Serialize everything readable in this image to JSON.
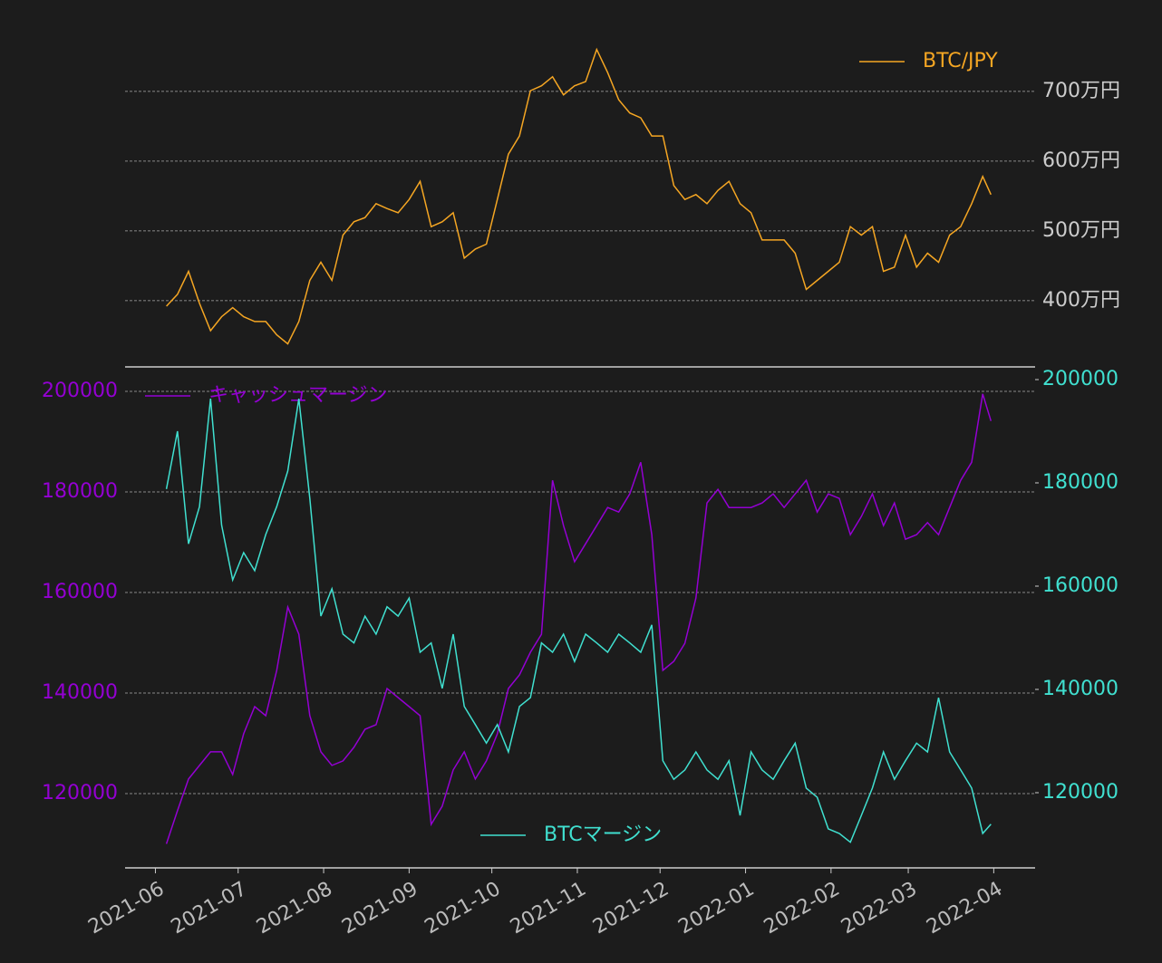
{
  "chart_data": [
    {
      "type": "line",
      "legend": "upper right",
      "grid": true,
      "ylabels_side": "right",
      "x": [
        4,
        8,
        12,
        16,
        20,
        24,
        28,
        32,
        36,
        40,
        44,
        48,
        52,
        56,
        60,
        64,
        68,
        72,
        76,
        80,
        84,
        88,
        92,
        96,
        100,
        104,
        108,
        112,
        116,
        120,
        124,
        128,
        132,
        136,
        140,
        144,
        148,
        152,
        156,
        160,
        164,
        168,
        172,
        176,
        180,
        184,
        188,
        192,
        196,
        200,
        204,
        208,
        212,
        216,
        220,
        224,
        228,
        232,
        236,
        240,
        244,
        248,
        252,
        256,
        260,
        264,
        268,
        272,
        276,
        280,
        284,
        288,
        292,
        296,
        300,
        303
      ],
      "xlim": [
        -11,
        319
      ],
      "ylim": [
        3050000,
        8050000
      ],
      "yticks": [
        {
          "value": 4000000,
          "label": "400万円"
        },
        {
          "value": 5000000,
          "label": "500万円"
        },
        {
          "value": 6000000,
          "label": "600万円"
        },
        {
          "value": 7000000,
          "label": "700万円"
        }
      ],
      "series": [
        {
          "name": "BTC/JPY",
          "color": "#f5a623",
          "axis": "y",
          "values": [
            3920000,
            4090000,
            4420000,
            3960000,
            3570000,
            3770000,
            3900000,
            3770000,
            3700000,
            3700000,
            3510000,
            3380000,
            3700000,
            4290000,
            4550000,
            4290000,
            4940000,
            5130000,
            5190000,
            5390000,
            5320000,
            5260000,
            5450000,
            5710000,
            5060000,
            5130000,
            5260000,
            4610000,
            4740000,
            4810000,
            5450000,
            6100000,
            6360000,
            7010000,
            7080000,
            7210000,
            6950000,
            7080000,
            7140000,
            7600000,
            7270000,
            6880000,
            6690000,
            6620000,
            6360000,
            6360000,
            5650000,
            5450000,
            5520000,
            5390000,
            5580000,
            5710000,
            5390000,
            5260000,
            4870000,
            4870000,
            4870000,
            4680000,
            4160000,
            4290000,
            4420000,
            4550000,
            5060000,
            4940000,
            5060000,
            4420000,
            4480000,
            4940000,
            4480000,
            4680000,
            4550000,
            4940000,
            5060000,
            5390000,
            5780000,
            5520000
          ]
        }
      ]
    },
    {
      "type": "line",
      "grid": true,
      "x": [
        4,
        8,
        12,
        16,
        20,
        24,
        28,
        32,
        36,
        40,
        44,
        48,
        52,
        56,
        60,
        64,
        68,
        72,
        76,
        80,
        84,
        88,
        92,
        96,
        100,
        104,
        108,
        112,
        116,
        120,
        124,
        128,
        132,
        136,
        140,
        144,
        148,
        152,
        156,
        160,
        164,
        168,
        172,
        176,
        180,
        184,
        188,
        192,
        196,
        200,
        204,
        208,
        212,
        216,
        220,
        224,
        228,
        232,
        236,
        240,
        244,
        248,
        252,
        256,
        260,
        264,
        268,
        272,
        276,
        280,
        284,
        288,
        292,
        296,
        300,
        303
      ],
      "xlim": [
        -11,
        319
      ],
      "xticks": [
        {
          "value": 0,
          "label": "2021-06"
        },
        {
          "value": 30,
          "label": "2021-07"
        },
        {
          "value": 61,
          "label": "2021-08"
        },
        {
          "value": 92,
          "label": "2021-09"
        },
        {
          "value": 122,
          "label": "2021-10"
        },
        {
          "value": 153,
          "label": "2021-11"
        },
        {
          "value": 183,
          "label": "2021-12"
        },
        {
          "value": 214,
          "label": "2022-01"
        },
        {
          "value": 245,
          "label": "2022-02"
        },
        {
          "value": 273,
          "label": "2022-03"
        },
        {
          "value": 304,
          "label": "2022-04"
        }
      ],
      "ylim": [
        105225,
        204865
      ],
      "yticks": [
        120000,
        140000,
        160000,
        180000,
        200000
      ],
      "y2lim": [
        105439,
        202456
      ],
      "y2ticks": [
        120000,
        140000,
        160000,
        180000,
        200000
      ],
      "series": [
        {
          "name": "キャッシュマージン",
          "color": "#9400d3",
          "axis": "y",
          "legend": "upper left",
          "values": [
            110000,
            116600,
            122900,
            125600,
            128300,
            128300,
            123800,
            131900,
            137300,
            135500,
            144500,
            157100,
            151700,
            135500,
            128300,
            125600,
            126500,
            129200,
            132800,
            133700,
            140900,
            139100,
            137300,
            135500,
            113900,
            117500,
            124700,
            128300,
            122900,
            126500,
            131900,
            140900,
            143600,
            148100,
            151700,
            182300,
            173300,
            166100,
            169700,
            173300,
            176900,
            176000,
            179600,
            185900,
            171500,
            144500,
            146300,
            149900,
            158900,
            177800,
            180500,
            176900,
            176900,
            176900,
            177800,
            179600,
            176900,
            179600,
            182300,
            176000,
            179600,
            178700,
            171500,
            175100,
            179600,
            173300,
            177800,
            170600,
            171500,
            173900,
            171500,
            176900,
            182300,
            185900,
            199500,
            194100
          ]
        },
        {
          "name": "BTCマージン",
          "color": "#40e0d0",
          "axis": "y2",
          "legend": "lower center",
          "values": [
            178800,
            190000,
            168200,
            175400,
            196300,
            171800,
            161200,
            166500,
            163000,
            170000,
            175400,
            182300,
            196300,
            177000,
            154200,
            159500,
            150700,
            149000,
            154200,
            150700,
            156000,
            154200,
            157700,
            147200,
            149000,
            140200,
            150700,
            136700,
            133200,
            129600,
            133200,
            127900,
            136700,
            138400,
            149000,
            147200,
            150700,
            145400,
            150700,
            149000,
            147200,
            150700,
            149000,
            147200,
            152500,
            126200,
            122600,
            124400,
            127900,
            124400,
            122600,
            126200,
            115600,
            127900,
            124400,
            122600,
            126200,
            129600,
            120900,
            119100,
            113000,
            112100,
            110400,
            115600,
            120900,
            127900,
            122600,
            126200,
            129600,
            127900,
            138400,
            127900,
            124400,
            120900,
            112100,
            113900
          ]
        }
      ]
    }
  ]
}
